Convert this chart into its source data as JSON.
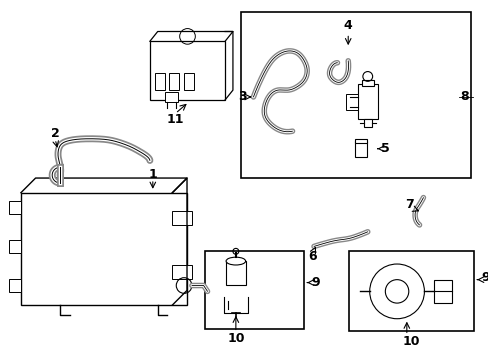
{
  "background_color": "#ffffff",
  "line_color": "#000000",
  "gray_color": "#888888",
  "label_color": "#000000"
}
